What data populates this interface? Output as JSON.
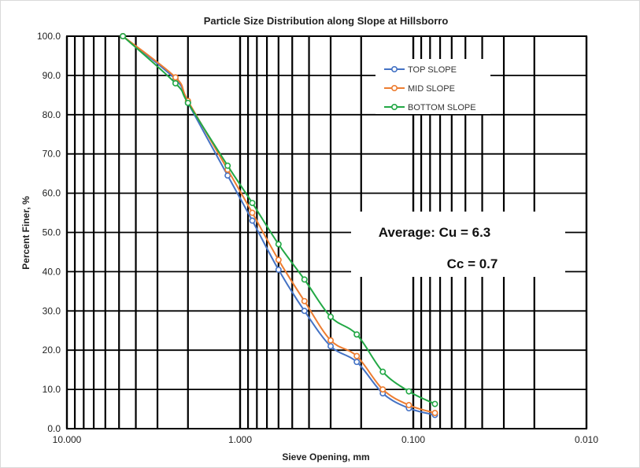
{
  "chart_data": {
    "type": "line",
    "title": "Particle Size Distribution along Slope at Hillsborro",
    "xlabel": "Sieve Opening, mm",
    "ylabel": "Percent Finer, %",
    "x_scale": "log",
    "x_reversed": true,
    "xlim": [
      10,
      0.01
    ],
    "ylim": [
      0,
      100
    ],
    "x_ticks": [
      "10.000",
      "1.000",
      "0.100",
      "0.010"
    ],
    "y_ticks": [
      "0.0",
      "10.0",
      "20.0",
      "30.0",
      "40.0",
      "50.0",
      "60.0",
      "70.0",
      "80.0",
      "90.0",
      "100.0"
    ],
    "grid": true,
    "legend_position": "top-right",
    "series": [
      {
        "name": "TOP SLOPE",
        "color": "#4472C4",
        "x": [
          4.75,
          2.36,
          2.0,
          1.18,
          0.85,
          0.6,
          0.425,
          0.3,
          0.212,
          0.15,
          0.106,
          0.075
        ],
        "y": [
          100,
          89,
          83,
          64.5,
          53,
          40.5,
          30,
          21,
          17,
          9,
          5.2,
          3.5
        ]
      },
      {
        "name": "MID SLOPE",
        "color": "#ED7D31",
        "x": [
          4.75,
          2.36,
          2.0,
          1.18,
          0.85,
          0.6,
          0.425,
          0.3,
          0.212,
          0.15,
          0.106,
          0.075
        ],
        "y": [
          100,
          89.5,
          83.5,
          66,
          55,
          43,
          32.5,
          22.5,
          18.5,
          10,
          6,
          4
        ]
      },
      {
        "name": "BOTTOM SLOPE",
        "color": "#22A845",
        "x": [
          4.75,
          2.36,
          2.0,
          1.18,
          0.85,
          0.6,
          0.425,
          0.3,
          0.212,
          0.15,
          0.106,
          0.075
        ],
        "y": [
          100,
          88,
          83,
          67,
          57.5,
          47,
          38,
          28.5,
          24,
          14.5,
          9.5,
          6.3
        ]
      }
    ],
    "annotations": [
      "Average: Cu = 6.3",
      "Cc = 0.7"
    ]
  }
}
